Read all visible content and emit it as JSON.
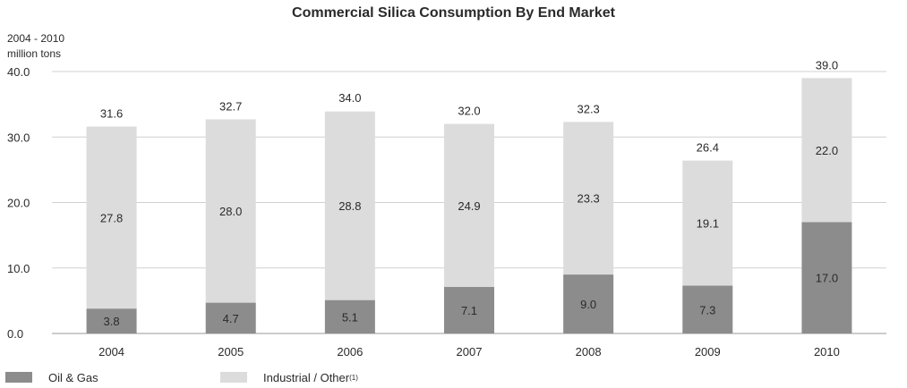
{
  "chart_data": {
    "type": "bar",
    "stacked": true,
    "title": "Commercial Silica Consumption By End Market",
    "unit_line1": "2004 - 2010",
    "unit_line2": "million tons",
    "categories": [
      "2004",
      "2005",
      "2006",
      "2007",
      "2008",
      "2009",
      "2010"
    ],
    "series": [
      {
        "name": "Oil & Gas",
        "values": [
          3.8,
          4.7,
          5.1,
          7.1,
          9.0,
          7.3,
          17.0
        ],
        "color": "#8c8c8c"
      },
      {
        "name": "Industrial / Other",
        "name_suffix": "(1)",
        "values": [
          27.8,
          28.0,
          28.8,
          24.9,
          23.3,
          19.1,
          22.0
        ],
        "color": "#dcdcdc"
      }
    ],
    "totals": [
      31.6,
      32.7,
      34.0,
      32.0,
      32.3,
      26.4,
      39.0
    ],
    "ylim": [
      0,
      40
    ],
    "yticks": [
      "0.0",
      "10.0",
      "20.0",
      "30.0",
      "40.0"
    ],
    "grid": true,
    "legend_position": "bottom-left"
  }
}
